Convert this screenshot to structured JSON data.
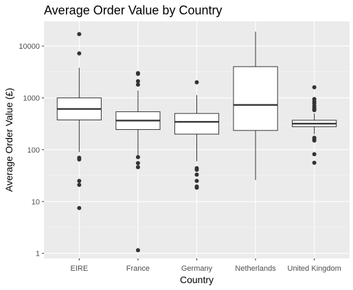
{
  "chart_data": {
    "type": "boxplot",
    "title": "Average Order Value by Country",
    "xlabel": "Country",
    "ylabel": "Average Order Value (£)",
    "y_scale": "log10",
    "ylim": [
      0.8,
      30000
    ],
    "y_ticks": [
      1,
      10,
      100,
      1000,
      10000
    ],
    "y_tick_labels": [
      "1",
      "10",
      "100",
      "1000",
      "10000"
    ],
    "grid": true,
    "categories": [
      "EIRE",
      "France",
      "Germany",
      "Netherlands",
      "United Kingdom"
    ],
    "boxes": [
      {
        "q1": 375,
        "median": 610,
        "q3": 1000,
        "whisker_low": 90,
        "whisker_high": 3800,
        "outliers": [
          17000,
          7200,
          70,
          65,
          25,
          21,
          7.5
        ]
      },
      {
        "q1": 245,
        "median": 365,
        "q3": 540,
        "whisker_low": 78,
        "whisker_high": 1380,
        "outliers": [
          3000,
          2900,
          2100,
          1800,
          72,
          55,
          46,
          1.15
        ]
      },
      {
        "q1": 200,
        "median": 345,
        "q3": 500,
        "whisker_low": 60,
        "whisker_high": 1130,
        "outliers": [
          2000,
          44,
          41,
          33,
          25,
          19.5,
          18.5
        ]
      },
      {
        "q1": 235,
        "median": 730,
        "q3": 4000,
        "whisker_low": 26,
        "whisker_high": 19000,
        "outliers": []
      },
      {
        "q1": 278,
        "median": 318,
        "q3": 370,
        "whisker_low": 200,
        "whisker_high": 500,
        "outliers": [
          1600,
          950,
          850,
          780,
          700,
          640,
          600,
          580,
          170,
          160,
          150,
          82,
          56
        ]
      }
    ],
    "colors": {
      "panel": "#ebebeb",
      "grid_major": "#ffffff",
      "grid_minor": "#f5f5f5",
      "box_fill": "#ffffff",
      "line": "#333333",
      "point": "#333333"
    }
  }
}
